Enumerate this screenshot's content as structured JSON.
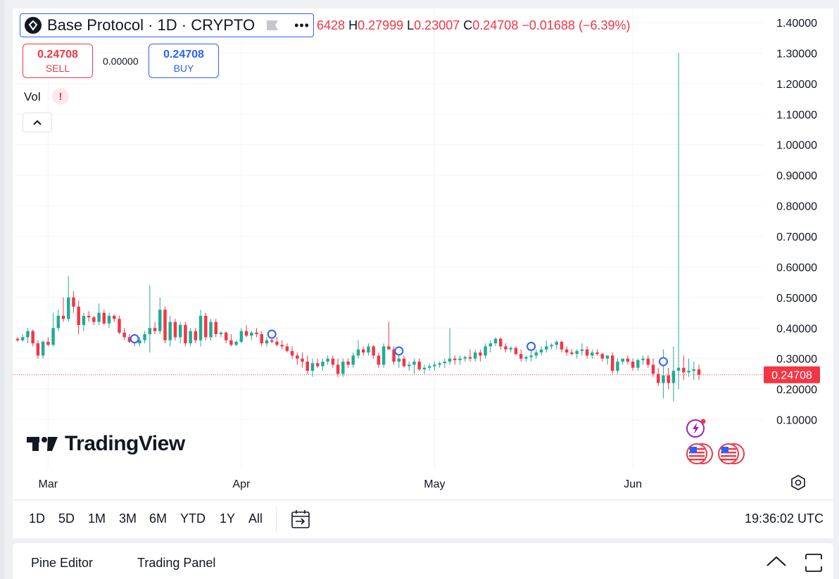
{
  "symbol": {
    "title": "Base Protocol · 1D · CRYPTO",
    "more_label": "•••"
  },
  "ohlc": {
    "open_partial": "6428",
    "h_label": "H",
    "h_value": "0.27999",
    "l_label": "L",
    "l_value": "0.23007",
    "c_label": "C",
    "c_value": "0.24708",
    "change": "−0.01688 (−6.39%)"
  },
  "trade": {
    "sell_price": "0.24708",
    "sell_label": "SELL",
    "spread": "0.00000",
    "buy_price": "0.24708",
    "buy_label": "BUY"
  },
  "volume": {
    "label": "Vol",
    "warning": "!"
  },
  "brand": {
    "name": "TradingView"
  },
  "range_bar": {
    "ranges": [
      "1D",
      "5D",
      "1M",
      "3M",
      "6M",
      "YTD",
      "1Y",
      "All"
    ],
    "clock": "19:36:02 UTC"
  },
  "bottom_panel": {
    "tab1": "Pine Editor",
    "tab2": "Trading Panel"
  },
  "colors": {
    "up": "#22ab94",
    "down": "#f23645",
    "accent": "#2962ff",
    "text": "#131722",
    "grid": "#f0f3fa"
  },
  "chart_data": {
    "type": "candlestick",
    "ylim": [
      0.0,
      1.4
    ],
    "y_ticks": [
      "1.40000",
      "1.30000",
      "1.20000",
      "1.10000",
      "1.00000",
      "0.90000",
      "0.80000",
      "0.70000",
      "0.60000",
      "0.50000",
      "0.40000",
      "0.30000",
      "0.20000",
      "0.10000"
    ],
    "x_ticks": [
      "Mar",
      "Apr",
      "May",
      "Jun"
    ],
    "last_price": 0.24708,
    "last_price_label": "0.24708",
    "candles": [
      [
        0.365,
        0.37,
        0.355,
        0.36
      ],
      [
        0.36,
        0.38,
        0.355,
        0.37
      ],
      [
        0.37,
        0.4,
        0.35,
        0.39
      ],
      [
        0.39,
        0.395,
        0.34,
        0.35
      ],
      [
        0.35,
        0.36,
        0.3,
        0.31
      ],
      [
        0.31,
        0.36,
        0.3,
        0.355
      ],
      [
        0.355,
        0.37,
        0.34,
        0.345
      ],
      [
        0.345,
        0.45,
        0.34,
        0.4
      ],
      [
        0.4,
        0.46,
        0.39,
        0.44
      ],
      [
        0.44,
        0.5,
        0.42,
        0.43
      ],
      [
        0.43,
        0.57,
        0.42,
        0.5
      ],
      [
        0.5,
        0.52,
        0.45,
        0.47
      ],
      [
        0.47,
        0.49,
        0.38,
        0.41
      ],
      [
        0.41,
        0.45,
        0.39,
        0.44
      ],
      [
        0.44,
        0.455,
        0.42,
        0.435
      ],
      [
        0.435,
        0.44,
        0.41,
        0.42
      ],
      [
        0.42,
        0.48,
        0.41,
        0.45
      ],
      [
        0.45,
        0.46,
        0.41,
        0.415
      ],
      [
        0.415,
        0.45,
        0.4,
        0.44
      ],
      [
        0.44,
        0.445,
        0.42,
        0.43
      ],
      [
        0.43,
        0.44,
        0.38,
        0.385
      ],
      [
        0.385,
        0.4,
        0.36,
        0.37
      ],
      [
        0.37,
        0.38,
        0.35,
        0.355
      ],
      [
        0.355,
        0.37,
        0.34,
        0.35
      ],
      [
        0.35,
        0.37,
        0.34,
        0.36
      ],
      [
        0.36,
        0.39,
        0.35,
        0.38
      ],
      [
        0.38,
        0.54,
        0.32,
        0.4
      ],
      [
        0.4,
        0.42,
        0.38,
        0.39
      ],
      [
        0.39,
        0.5,
        0.38,
        0.46
      ],
      [
        0.46,
        0.47,
        0.35,
        0.36
      ],
      [
        0.36,
        0.44,
        0.34,
        0.42
      ],
      [
        0.42,
        0.43,
        0.36,
        0.37
      ],
      [
        0.37,
        0.42,
        0.35,
        0.41
      ],
      [
        0.41,
        0.42,
        0.34,
        0.35
      ],
      [
        0.35,
        0.4,
        0.34,
        0.39
      ],
      [
        0.39,
        0.4,
        0.35,
        0.36
      ],
      [
        0.36,
        0.46,
        0.34,
        0.44
      ],
      [
        0.44,
        0.45,
        0.36,
        0.37
      ],
      [
        0.37,
        0.43,
        0.36,
        0.42
      ],
      [
        0.42,
        0.43,
        0.37,
        0.38
      ],
      [
        0.38,
        0.39,
        0.37,
        0.385
      ],
      [
        0.385,
        0.39,
        0.35,
        0.36
      ],
      [
        0.36,
        0.38,
        0.34,
        0.345
      ],
      [
        0.345,
        0.36,
        0.34,
        0.355
      ],
      [
        0.355,
        0.4,
        0.35,
        0.39
      ],
      [
        0.39,
        0.41,
        0.37,
        0.375
      ],
      [
        0.375,
        0.39,
        0.36,
        0.385
      ],
      [
        0.385,
        0.4,
        0.37,
        0.38
      ],
      [
        0.38,
        0.39,
        0.34,
        0.35
      ],
      [
        0.35,
        0.37,
        0.34,
        0.36
      ],
      [
        0.36,
        0.37,
        0.35,
        0.355
      ],
      [
        0.355,
        0.37,
        0.34,
        0.345
      ],
      [
        0.345,
        0.36,
        0.33,
        0.34
      ],
      [
        0.34,
        0.35,
        0.32,
        0.325
      ],
      [
        0.325,
        0.34,
        0.3,
        0.31
      ],
      [
        0.31,
        0.32,
        0.28,
        0.3
      ],
      [
        0.3,
        0.32,
        0.27,
        0.29
      ],
      [
        0.29,
        0.31,
        0.25,
        0.26
      ],
      [
        0.26,
        0.3,
        0.24,
        0.285
      ],
      [
        0.285,
        0.3,
        0.27,
        0.275
      ],
      [
        0.275,
        0.3,
        0.26,
        0.29
      ],
      [
        0.29,
        0.31,
        0.28,
        0.3
      ],
      [
        0.3,
        0.31,
        0.27,
        0.28
      ],
      [
        0.28,
        0.3,
        0.24,
        0.25
      ],
      [
        0.25,
        0.3,
        0.24,
        0.29
      ],
      [
        0.29,
        0.3,
        0.27,
        0.28
      ],
      [
        0.28,
        0.32,
        0.27,
        0.31
      ],
      [
        0.31,
        0.36,
        0.3,
        0.33
      ],
      [
        0.33,
        0.34,
        0.31,
        0.32
      ],
      [
        0.32,
        0.35,
        0.31,
        0.34
      ],
      [
        0.34,
        0.345,
        0.3,
        0.31
      ],
      [
        0.31,
        0.32,
        0.27,
        0.28
      ],
      [
        0.28,
        0.35,
        0.27,
        0.34
      ],
      [
        0.34,
        0.42,
        0.33,
        0.33
      ],
      [
        0.33,
        0.34,
        0.28,
        0.29
      ],
      [
        0.29,
        0.31,
        0.27,
        0.3
      ],
      [
        0.3,
        0.31,
        0.27,
        0.275
      ],
      [
        0.275,
        0.29,
        0.26,
        0.28
      ],
      [
        0.28,
        0.3,
        0.25,
        0.29
      ],
      [
        0.29,
        0.3,
        0.26,
        0.265
      ],
      [
        0.265,
        0.28,
        0.25,
        0.27
      ],
      [
        0.27,
        0.285,
        0.26,
        0.275
      ],
      [
        0.275,
        0.29,
        0.26,
        0.28
      ],
      [
        0.28,
        0.29,
        0.27,
        0.285
      ],
      [
        0.285,
        0.3,
        0.27,
        0.29
      ],
      [
        0.29,
        0.4,
        0.28,
        0.3
      ],
      [
        0.3,
        0.31,
        0.28,
        0.295
      ],
      [
        0.295,
        0.31,
        0.28,
        0.3
      ],
      [
        0.3,
        0.31,
        0.29,
        0.305
      ],
      [
        0.305,
        0.33,
        0.29,
        0.3
      ],
      [
        0.3,
        0.33,
        0.29,
        0.32
      ],
      [
        0.32,
        0.33,
        0.29,
        0.31
      ],
      [
        0.31,
        0.35,
        0.3,
        0.34
      ],
      [
        0.34,
        0.36,
        0.32,
        0.35
      ],
      [
        0.35,
        0.37,
        0.34,
        0.365
      ],
      [
        0.365,
        0.37,
        0.33,
        0.34
      ],
      [
        0.34,
        0.35,
        0.32,
        0.33
      ],
      [
        0.33,
        0.34,
        0.32,
        0.335
      ],
      [
        0.335,
        0.34,
        0.31,
        0.315
      ],
      [
        0.315,
        0.33,
        0.29,
        0.3
      ],
      [
        0.3,
        0.31,
        0.29,
        0.305
      ],
      [
        0.305,
        0.33,
        0.29,
        0.31
      ],
      [
        0.31,
        0.33,
        0.3,
        0.32
      ],
      [
        0.32,
        0.34,
        0.31,
        0.33
      ],
      [
        0.33,
        0.36,
        0.32,
        0.34
      ],
      [
        0.34,
        0.35,
        0.33,
        0.345
      ],
      [
        0.345,
        0.36,
        0.33,
        0.355
      ],
      [
        0.355,
        0.36,
        0.32,
        0.33
      ],
      [
        0.33,
        0.34,
        0.31,
        0.32
      ],
      [
        0.32,
        0.33,
        0.31,
        0.315
      ],
      [
        0.315,
        0.33,
        0.3,
        0.325
      ],
      [
        0.325,
        0.35,
        0.31,
        0.33
      ],
      [
        0.33,
        0.34,
        0.3,
        0.31
      ],
      [
        0.31,
        0.33,
        0.3,
        0.32
      ],
      [
        0.32,
        0.33,
        0.31,
        0.315
      ],
      [
        0.315,
        0.32,
        0.29,
        0.3
      ],
      [
        0.3,
        0.31,
        0.28,
        0.31
      ],
      [
        0.31,
        0.32,
        0.25,
        0.26
      ],
      [
        0.26,
        0.3,
        0.25,
        0.29
      ],
      [
        0.29,
        0.3,
        0.28,
        0.3
      ],
      [
        0.3,
        0.31,
        0.28,
        0.29
      ],
      [
        0.29,
        0.3,
        0.26,
        0.27
      ],
      [
        0.27,
        0.3,
        0.26,
        0.295
      ],
      [
        0.295,
        0.31,
        0.28,
        0.3
      ],
      [
        0.3,
        0.31,
        0.27,
        0.28
      ],
      [
        0.28,
        0.3,
        0.24,
        0.25
      ],
      [
        0.25,
        0.27,
        0.21,
        0.22
      ],
      [
        0.22,
        0.33,
        0.17,
        0.245
      ],
      [
        0.245,
        0.27,
        0.2,
        0.22
      ],
      [
        0.22,
        0.34,
        0.16,
        0.26
      ],
      [
        0.26,
        1.3,
        0.2,
        0.27
      ],
      [
        0.27,
        0.31,
        0.23,
        0.255
      ],
      [
        0.255,
        0.3,
        0.24,
        0.26
      ],
      [
        0.26,
        0.29,
        0.23,
        0.265
      ],
      [
        0.265,
        0.28,
        0.23,
        0.247
      ]
    ]
  }
}
